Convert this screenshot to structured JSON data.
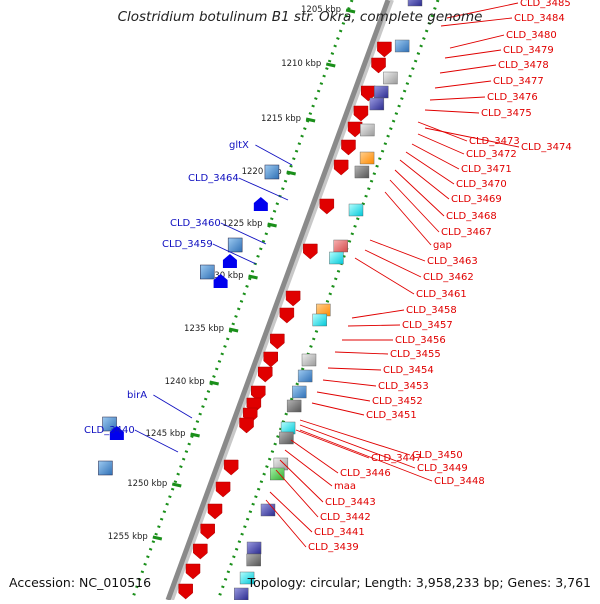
{
  "title": "Clostridium botulinum B1 str. Okra, complete genome",
  "footer": {
    "accession": "Accession: NC_010516",
    "topology": "Topology: circular; Length: 3,958,233 bp; Genes: 3,761"
  },
  "colors": {
    "forward_gene": "#0000ee",
    "reverse_gene": "#e00000",
    "ruler_dots": "#1a8f1a",
    "backbone": "#8a8a8a",
    "label_red": "#e00000",
    "label_blue": "#1010c0"
  },
  "kbp_marks": [
    "1205 kbp",
    "1210 kbp",
    "1215 kbp",
    "1220 kbp",
    "1225 kbp",
    "1230 kbp",
    "1235 kbp",
    "1240 kbp",
    "1245 kbp",
    "1250 kbp",
    "1255 kbp"
  ],
  "right_labels": [
    "CLD_3485",
    "CLD_3484",
    "CLD_3480",
    "CLD_3479",
    "CLD_3478",
    "CLD_3477",
    "CLD_3476",
    "CLD_3475",
    "CLD_3473",
    "CLD_3474",
    "CLD_3472",
    "CLD_3471",
    "CLD_3470",
    "CLD_3469",
    "CLD_3468",
    "CLD_3467",
    "gap",
    "CLD_3463",
    "CLD_3462",
    "CLD_3461",
    "CLD_3458",
    "CLD_3457",
    "CLD_3456",
    "CLD_3455",
    "CLD_3454",
    "CLD_3453",
    "CLD_3452",
    "CLD_3451",
    "CLD_3450",
    "CLD_3449",
    "CLD_3448",
    "CLD_3447",
    "CLD_3446",
    "maa",
    "CLD_3443",
    "CLD_3442",
    "CLD_3441",
    "CLD_3439"
  ],
  "left_labels": [
    "gltX",
    "CLD_3464",
    "CLD_3460",
    "CLD_3459",
    "birA",
    "CLD_3440"
  ]
}
